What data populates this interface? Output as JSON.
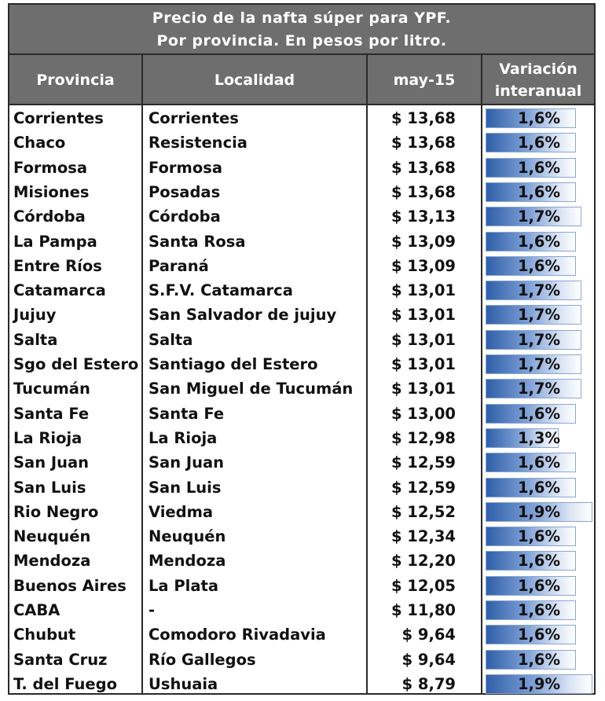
{
  "title": {
    "line1": "Precio de la nafta súper para YPF.",
    "line2": "Por provincia. En pesos por litro."
  },
  "headers": {
    "provincia": "Provincia",
    "localidad": "Localidad",
    "fecha": "may-15",
    "variacion_1": "Variación",
    "variacion_2": "interanual"
  },
  "rows": [
    {
      "provincia": "Corrientes",
      "localidad": "Corrientes",
      "precio": "$ 13,68",
      "variacion": "1,6%",
      "variacion_value": 0.016
    },
    {
      "provincia": "Chaco",
      "localidad": "Resistencia",
      "precio": "$ 13,68",
      "variacion": "1,6%",
      "variacion_value": 0.016
    },
    {
      "provincia": "Formosa",
      "localidad": "Formosa",
      "precio": "$ 13,68",
      "variacion": "1,6%",
      "variacion_value": 0.016
    },
    {
      "provincia": "Misiones",
      "localidad": "Posadas",
      "precio": "$ 13,68",
      "variacion": "1,6%",
      "variacion_value": 0.016
    },
    {
      "provincia": "Córdoba",
      "localidad": "Córdoba",
      "precio": "$ 13,13",
      "variacion": "1,7%",
      "variacion_value": 0.017
    },
    {
      "provincia": "La Pampa",
      "localidad": "Santa Rosa",
      "precio": "$ 13,09",
      "variacion": "1,6%",
      "variacion_value": 0.016
    },
    {
      "provincia": "Entre Ríos",
      "localidad": "Paraná",
      "precio": "$ 13,09",
      "variacion": "1,6%",
      "variacion_value": 0.016
    },
    {
      "provincia": "Catamarca",
      "localidad": "S.F.V. Catamarca",
      "precio": "$ 13,01",
      "variacion": "1,7%",
      "variacion_value": 0.017
    },
    {
      "provincia": "Jujuy",
      "localidad": "San Salvador de jujuy",
      "precio": "$ 13,01",
      "variacion": "1,7%",
      "variacion_value": 0.017
    },
    {
      "provincia": "Salta",
      "localidad": "Salta",
      "precio": "$ 13,01",
      "variacion": "1,7%",
      "variacion_value": 0.017
    },
    {
      "provincia": "Sgo del Estero",
      "localidad": "Santiago del Estero",
      "precio": "$ 13,01",
      "variacion": "1,7%",
      "variacion_value": 0.017
    },
    {
      "provincia": "Tucumán",
      "localidad": "San Miguel de Tucumán",
      "precio": "$ 13,01",
      "variacion": "1,7%",
      "variacion_value": 0.017
    },
    {
      "provincia": "Santa Fe",
      "localidad": "Santa Fe",
      "precio": "$ 13,00",
      "variacion": "1,6%",
      "variacion_value": 0.016
    },
    {
      "provincia": "La Rioja",
      "localidad": "La Rioja",
      "precio": "$ 12,98",
      "variacion": "1,3%",
      "variacion_value": 0.013
    },
    {
      "provincia": "San Juan",
      "localidad": "San Juan",
      "precio": "$ 12,59",
      "variacion": "1,6%",
      "variacion_value": 0.016
    },
    {
      "provincia": "San Luis",
      "localidad": "San Luis",
      "precio": "$ 12,59",
      "variacion": "1,6%",
      "variacion_value": 0.016
    },
    {
      "provincia": "Rio Negro",
      "localidad": "Viedma",
      "precio": "$ 12,52",
      "variacion": "1,9%",
      "variacion_value": 0.019
    },
    {
      "provincia": "Neuquén",
      "localidad": "Neuquén",
      "precio": "$ 12,34",
      "variacion": "1,6%",
      "variacion_value": 0.016
    },
    {
      "provincia": "Mendoza",
      "localidad": "Mendoza",
      "precio": "$ 12,20",
      "variacion": "1,6%",
      "variacion_value": 0.016
    },
    {
      "provincia": "Buenos Aires",
      "localidad": "La Plata",
      "precio": "$ 12,05",
      "variacion": "1,6%",
      "variacion_value": 0.016
    },
    {
      "provincia": "CABA",
      "localidad": "-",
      "precio": "$ 11,80",
      "variacion": "1,6%",
      "variacion_value": 0.016
    },
    {
      "provincia": "Chubut",
      "localidad": "Comodoro Rivadavia",
      "precio": "$ 9,64",
      "variacion": "1,6%",
      "variacion_value": 0.016
    },
    {
      "provincia": "Santa Cruz",
      "localidad": "Río Gallegos",
      "precio": "$ 9,64",
      "variacion": "1,6%",
      "variacion_value": 0.016
    },
    {
      "provincia": "T. del Fuego",
      "localidad": "Ushuaia",
      "precio": "$ 8,79",
      "variacion": "1,9%",
      "variacion_value": 0.019
    }
  ],
  "colors": {
    "header_bg": "#6e6e6e",
    "bar_start": "#2f5fa8",
    "bar_end": "#ffffff"
  }
}
